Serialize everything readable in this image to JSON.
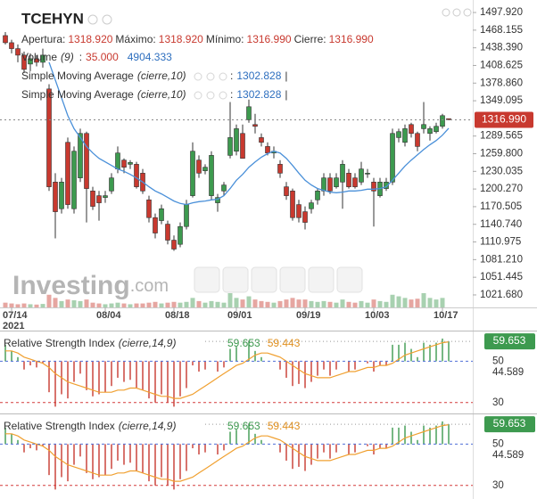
{
  "chart_data": [
    {
      "type": "candlestick",
      "title": "TCEHYN",
      "categories": [
        null,
        "07/14",
        null,
        null,
        null,
        null,
        null,
        null,
        null,
        null,
        null,
        null,
        null,
        null,
        null,
        null,
        "08/04",
        null,
        null,
        null,
        null,
        null,
        null,
        null,
        null,
        null,
        null,
        "08/18",
        null,
        null,
        null,
        null,
        null,
        null,
        null,
        null,
        null,
        "09/01",
        null,
        null,
        null,
        null,
        null,
        null,
        null,
        null,
        null,
        null,
        "09/19",
        null,
        null,
        null,
        null,
        null,
        null,
        null,
        null,
        null,
        null,
        "10/03",
        null,
        null,
        null,
        null,
        null,
        null,
        null,
        null,
        null,
        null,
        "10/17",
        null
      ],
      "year": "2021",
      "open": [
        1459,
        1447,
        1437,
        1426,
        1411,
        1420,
        1414,
        1369,
        1212,
        1167,
        1279,
        1167,
        1219,
        1294,
        1197,
        1189,
        1186,
        1197,
        1234,
        1249,
        1242,
        1242,
        1227,
        1182,
        1152,
        1147,
        1141,
        1114,
        1107,
        1137,
        1189,
        1249,
        1231,
        1189,
        1177,
        1197,
        1257,
        1264,
        1294,
        1317,
        1309,
        1287,
        1272,
        1261,
        1242,
        1204,
        1197,
        1174,
        1162,
        1167,
        1182,
        1197,
        1219,
        1204,
        1212,
        1227,
        1219,
        1212,
        1227,
        1212,
        1189,
        1201,
        1212,
        1287,
        1279,
        1309,
        1294,
        1302,
        1294,
        1297,
        1306,
        1318.92
      ],
      "high": [
        1465,
        1452,
        1444,
        1432,
        1429,
        1426,
        1437,
        1377,
        1227,
        1219,
        1287,
        1272,
        1302,
        1297,
        1204,
        1197,
        1197,
        1227,
        1272,
        1252,
        1249,
        1246,
        1234,
        1189,
        1159,
        1174,
        1147,
        1122,
        1144,
        1182,
        1279,
        1257,
        1242,
        1264,
        1192,
        1212,
        1347,
        1309,
        1309,
        1351,
        1327,
        1294,
        1279,
        1272,
        1249,
        1212,
        1201,
        1182,
        1171,
        1182,
        1201,
        1227,
        1227,
        1227,
        1249,
        1234,
        1227,
        1246,
        1234,
        1219,
        1219,
        1219,
        1302,
        1302,
        1309,
        1312,
        1297,
        1347,
        1306,
        1312,
        1327,
        1318.92
      ],
      "low": [
        1444,
        1429,
        1414,
        1396,
        1399,
        1407,
        1405,
        1197,
        1117,
        1159,
        1167,
        1159,
        1212,
        1144,
        1165,
        1147,
        1177,
        1192,
        1227,
        1227,
        1234,
        1201,
        1192,
        1144,
        1117,
        1141,
        1107,
        1096,
        1102,
        1132,
        1186,
        1219,
        1225,
        1182,
        1162,
        1189,
        1252,
        1257,
        1252,
        1312,
        1294,
        1272,
        1257,
        1252,
        1219,
        1182,
        1147,
        1144,
        1132,
        1159,
        1174,
        1189,
        1192,
        1201,
        1167,
        1201,
        1201,
        1207,
        1219,
        1137,
        1186,
        1197,
        1207,
        1279,
        1272,
        1287,
        1264,
        1294,
        1282,
        1294,
        1302,
        1316.99
      ],
      "close": [
        1447,
        1437,
        1426,
        1402,
        1420,
        1414,
        1426,
        1204,
        1162,
        1212,
        1174,
        1264,
        1294,
        1201,
        1171,
        1177,
        1189,
        1219,
        1261,
        1237,
        1245,
        1204,
        1197,
        1152,
        1126,
        1167,
        1114,
        1099,
        1137,
        1174,
        1264,
        1227,
        1237,
        1257,
        1186,
        1207,
        1287,
        1302,
        1252,
        1339,
        1306,
        1279,
        1261,
        1264,
        1227,
        1189,
        1152,
        1152,
        1144,
        1177,
        1197,
        1219,
        1197,
        1219,
        1242,
        1204,
        1204,
        1234,
        1227,
        1197,
        1212,
        1212,
        1294,
        1297,
        1302,
        1294,
        1272,
        1309,
        1302,
        1306,
        1324,
        1316.99
      ],
      "up_color": "#3d9a4f",
      "down_color": "#c8392f",
      "ylim": [
        1000.6,
        1519
      ],
      "yticks": [
        {
          "value": 1497.92,
          "label": "1497.920"
        },
        1468.155,
        {
          "value": 1438.39,
          "label": "1438.390"
        },
        1408.625,
        {
          "value": 1378.86,
          "label": "1378.860"
        },
        1349.095,
        1289.565,
        {
          "value": 1259.8,
          "label": "1259.800"
        },
        1230.035,
        {
          "value": 1200.27,
          "label": "1200.270"
        },
        1170.505,
        {
          "value": 1140.74,
          "label": "1140.740"
        },
        1110.975,
        {
          "value": 1081.21,
          "label": "1081.210"
        },
        1051.445,
        {
          "value": 1021.68,
          "label": "1021.680"
        }
      ],
      "quote": {
        "labels": [
          "Apertura:",
          "Máximo:",
          "Mínimo:",
          "Cierre:"
        ],
        "value_labels": [
          "1318.920",
          "1318.920",
          "1316.990",
          "1316.990"
        ]
      },
      "separators": [
        ":",
        "|"
      ],
      "volume": {
        "name": "Volume",
        "params": "(9)",
        "last_value_label": "35.000",
        "ma": 4904.333,
        "values": [
          3000,
          2500,
          2000,
          2500,
          2000,
          1800,
          2200,
          8000,
          6000,
          4000,
          5000,
          4500,
          4000,
          5000,
          3000,
          2500,
          2000,
          2500,
          3000,
          2500,
          2000,
          2500,
          2500,
          3000,
          3500,
          2500,
          3000,
          3500,
          3000,
          3500,
          6000,
          4000,
          3000,
          4000,
          3500,
          3000,
          9000,
          6000,
          5000,
          7000,
          5000,
          4000,
          3500,
          3000,
          4000,
          5000,
          6000,
          5000,
          5000,
          4000,
          3500,
          4000,
          3500,
          3000,
          5000,
          3500,
          3000,
          4000,
          3000,
          5000,
          4000,
          3500,
          8000,
          7000,
          6000,
          5000,
          5500,
          9000,
          6000,
          5000,
          6000,
          35
        ]
      },
      "sma": {
        "name": "Simple Moving Average",
        "params": "(cierre,10)",
        "color": "#4a90d9",
        "values": [
          null,
          null,
          null,
          null,
          null,
          null,
          null,
          1414,
          1384,
          1354,
          1324,
          1302,
          1287,
          1272,
          1261,
          1252,
          1246,
          1240,
          1234,
          1230,
          1225,
          1219,
          1212,
          1204,
          1197,
          1192,
          1186,
          1180,
          1176,
          1174,
          1177,
          1179,
          1180,
          1182,
          1183,
          1189,
          1201,
          1215,
          1225,
          1237,
          1246,
          1254,
          1260,
          1264,
          1261,
          1252,
          1240,
          1227,
          1215,
          1207,
          1201,
          1198,
          1195,
          1194,
          1195,
          1197,
          1197,
          1198,
          1200,
          1200,
          1201,
          1204,
          1215,
          1227,
          1239,
          1249,
          1258,
          1267,
          1275,
          1282,
          1291,
          1302.828
        ]
      },
      "watermark": {
        "brand": "Investing",
        "suffix": ".com"
      }
    },
    {
      "type": "rsi",
      "name": "Relative Strength Index",
      "params": "(cierre,14,9)",
      "values": [
        58,
        55,
        52,
        46,
        48,
        47,
        49,
        35,
        28,
        34,
        32,
        40,
        44,
        36,
        33,
        34,
        35,
        38,
        42,
        40,
        41,
        37,
        36,
        32,
        30,
        34,
        30,
        28,
        33,
        37,
        48,
        45,
        46,
        50,
        45,
        47,
        56,
        57,
        50,
        60,
        55,
        52,
        50,
        50,
        46,
        42,
        38,
        39,
        37,
        40,
        43,
        46,
        43,
        46,
        50,
        45,
        46,
        50,
        49,
        45,
        48,
        48,
        58,
        58,
        59,
        56,
        52,
        59,
        58,
        59,
        61,
        59.653
      ],
      "signal": [
        55,
        55,
        54,
        52,
        51,
        50,
        49,
        47,
        44,
        42,
        40,
        39,
        38,
        37,
        36,
        35,
        35,
        35,
        36,
        36,
        37,
        37,
        36,
        35,
        34,
        33,
        33,
        32,
        32,
        33,
        34,
        36,
        38,
        40,
        42,
        44,
        46,
        48,
        49,
        51,
        53,
        54,
        54,
        53,
        52,
        50,
        48,
        46,
        44,
        43,
        42,
        42,
        42,
        43,
        44,
        45,
        45,
        46,
        47,
        47,
        48,
        48,
        49,
        51,
        53,
        54,
        55,
        56,
        57,
        58,
        59,
        59.443
      ],
      "up_color": "#3d9a4f",
      "down_color": "#c8392f",
      "signal_color": "#f0a030",
      "ylim": [
        26,
        64
      ],
      "yticks": [
        50,
        44.589,
        30
      ],
      "tick_line_colors": [
        "#4f6fd8",
        "none",
        "#d33b3b"
      ]
    }
  ]
}
